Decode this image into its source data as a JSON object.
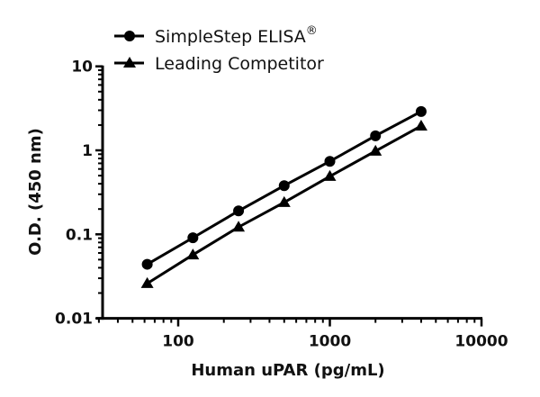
{
  "chart_data": {
    "type": "line",
    "title": "",
    "xlabel": "Human uPAR (pg/mL)",
    "ylabel": "O.D. (450 nm)",
    "xscale": "log",
    "yscale": "log",
    "xlim": [
      30,
      10000
    ],
    "ylim": [
      0.01,
      10
    ],
    "x_ticks": [
      "100",
      "1000",
      "10000"
    ],
    "y_ticks": [
      "0.01",
      "0.1",
      "1",
      "10"
    ],
    "grid": false,
    "legend_position": "top-left",
    "x": [
      62.5,
      125,
      250,
      500,
      1000,
      2000,
      4000
    ],
    "series": [
      {
        "name": "SimpleStep ELISA®",
        "marker": "circle",
        "color": "#000000",
        "values": [
          0.044,
          0.091,
          0.19,
          0.38,
          0.74,
          1.49,
          2.9
        ]
      },
      {
        "name": "Leading Competitor",
        "marker": "triangle",
        "color": "#000000",
        "values": [
          0.026,
          0.057,
          0.122,
          0.24,
          0.49,
          0.98,
          1.95
        ]
      }
    ]
  },
  "legend": {
    "items": [
      {
        "label": "SimpleStep ELISA",
        "superscript": "®"
      },
      {
        "label": "Leading Competitor",
        "superscript": ""
      }
    ]
  },
  "axes": {
    "x_title": "Human uPAR (pg/mL)",
    "y_title": "O.D. (450 nm)"
  }
}
